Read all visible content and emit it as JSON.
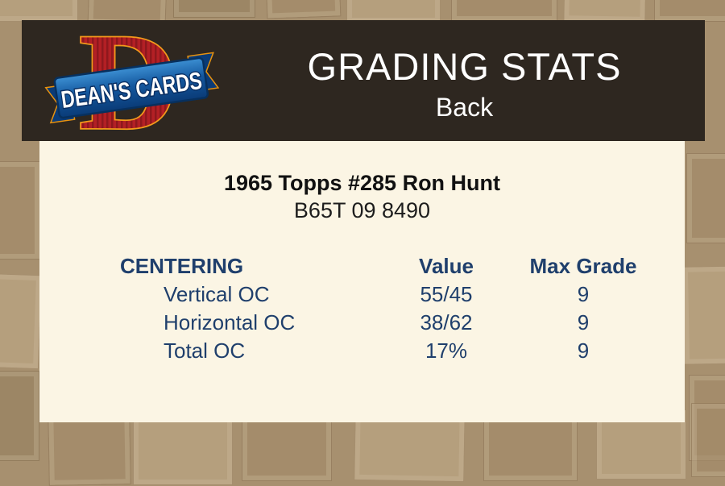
{
  "header": {
    "title": "GRADING STATS",
    "subtitle": "Back",
    "logo": {
      "monogram": "D",
      "ribbon_text": "DEAN'S CARDS"
    }
  },
  "card": {
    "title": "1965 Topps #285 Ron Hunt",
    "code": "B65T 09 8490"
  },
  "table": {
    "headers": [
      "CENTERING",
      "Value",
      "Max Grade"
    ],
    "rows": [
      {
        "label": "Vertical OC",
        "value": "55/45",
        "max_grade": "9"
      },
      {
        "label": "Horizontal OC",
        "value": "38/62",
        "max_grade": "9"
      },
      {
        "label": "Total OC",
        "value": "17%",
        "max_grade": "9"
      }
    ]
  },
  "colors": {
    "page_background": "#a7906f",
    "header_background": "#2e2720",
    "panel_background": "#fbf5e4",
    "table_text_navy": "#1f3f6c",
    "title_text": "#111111",
    "header_text": "#ffffff",
    "logo_red": "#b32025",
    "logo_orange": "#f39a1b",
    "logo_ribbon_blue": "#14589f"
  }
}
